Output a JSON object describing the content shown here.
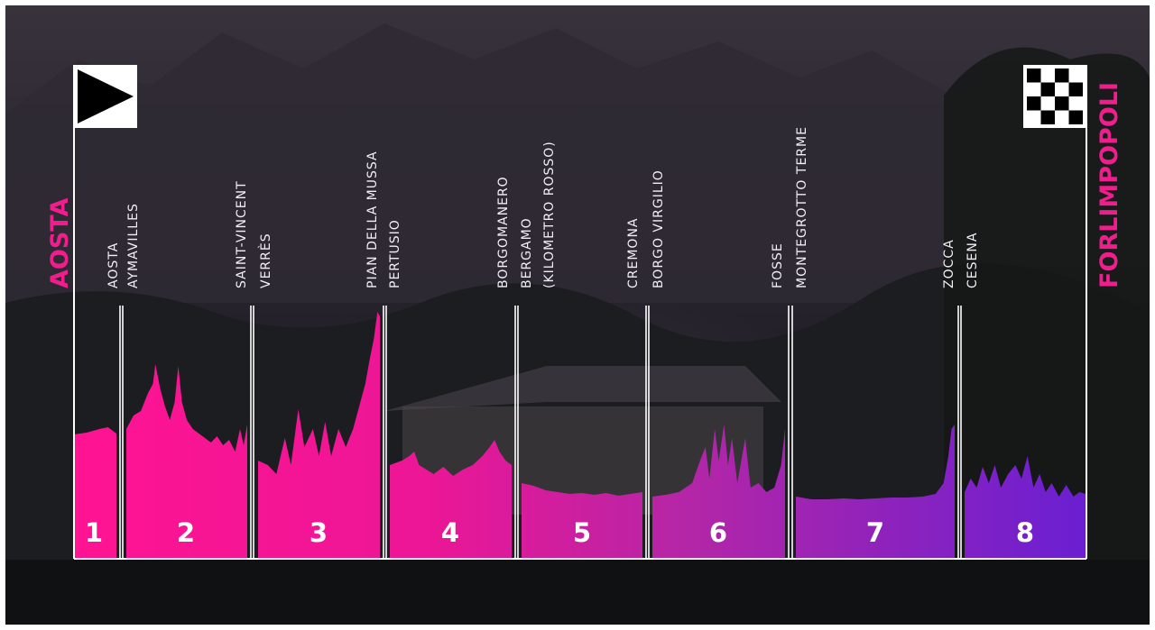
{
  "start_label": "AOSTA",
  "finish_label": "FORLIMPOPOLI",
  "start_flag_icon": "triangle-start-flag-icon",
  "finish_flag_icon": "checkered-flag-icon",
  "colors": {
    "start": "#ff1493",
    "end": "#6a1fd2",
    "accent": "#f01e8c"
  },
  "stages": [
    {
      "number": "1",
      "places": [
        "AOSTA",
        "AYMAVILLES"
      ],
      "color": "#f7178f"
    },
    {
      "number": "2",
      "places": [
        "SAINT-VINCENT",
        "VERRÈS"
      ],
      "color": "#f6168e"
    },
    {
      "number": "3",
      "places": [
        "PIAN DELLA MUSSA",
        "PERTUSIO"
      ],
      "color": "#e6148f"
    },
    {
      "number": "4",
      "places": [
        "BORGOMANERO",
        "BERGAMO",
        "(KILOMETRO ROSSO)"
      ],
      "color": "#d41f98"
    },
    {
      "number": "5",
      "places": [
        "CREMONA",
        "BORGO VIRGILIO"
      ],
      "color": "#bc239f"
    },
    {
      "number": "6",
      "places": [
        "FOSSE",
        "MONTEGROTTO TERME"
      ],
      "color": "#a327ad"
    },
    {
      "number": "7",
      "places": [
        "ZOCCA",
        "CESENA"
      ],
      "color": "#8a27b8"
    },
    {
      "number": "8",
      "places": [],
      "color": "#6a1fc9"
    }
  ]
}
